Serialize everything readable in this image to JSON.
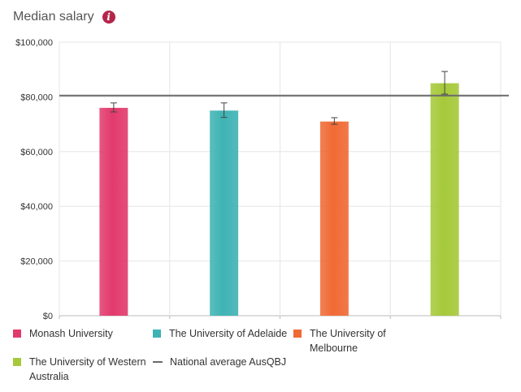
{
  "header": {
    "title": "Median salary",
    "info_icon": "info-icon",
    "info_glyph": "i"
  },
  "chart_data": {
    "type": "bar",
    "title": "Median salary",
    "xlabel": "",
    "ylabel": "",
    "ylim": [
      0,
      100000
    ],
    "yticks": [
      {
        "value": 0,
        "label": "$0"
      },
      {
        "value": 20000,
        "label": "$20,000"
      },
      {
        "value": 40000,
        "label": "$40,000"
      },
      {
        "value": 60000,
        "label": "$60,000"
      },
      {
        "value": 80000,
        "label": "$80,000"
      },
      {
        "value": 100000,
        "label": "$100,000"
      }
    ],
    "grid": true,
    "categories": [
      "Monash University",
      "The University of Adelaide",
      "The University of Melbourne",
      "The University of Western Australia"
    ],
    "values": [
      76000,
      75000,
      71000,
      85000
    ],
    "error_low": [
      74500,
      72500,
      70000,
      81000
    ],
    "error_high": [
      77800,
      77800,
      72400,
      89300
    ],
    "colors": [
      "#e23a6c",
      "#3fb3b4",
      "#f06a35",
      "#a6c93a"
    ],
    "reference_line": {
      "name": "National average AusQBJ",
      "value": 80500,
      "color": "#6b6b6b"
    },
    "legend_position": "bottom"
  },
  "legend": {
    "items": [
      {
        "label": "Monash University",
        "color": "#e23a6c"
      },
      {
        "label": "The University of Adelaide",
        "color": "#3fb3b4"
      },
      {
        "label": "The University of Melbourne",
        "color": "#f06a35"
      },
      {
        "label": "The University of Western Australia",
        "color": "#a6c93a"
      }
    ],
    "reference_label": "National average AusQBJ",
    "reference_color": "#6b6b6b"
  }
}
